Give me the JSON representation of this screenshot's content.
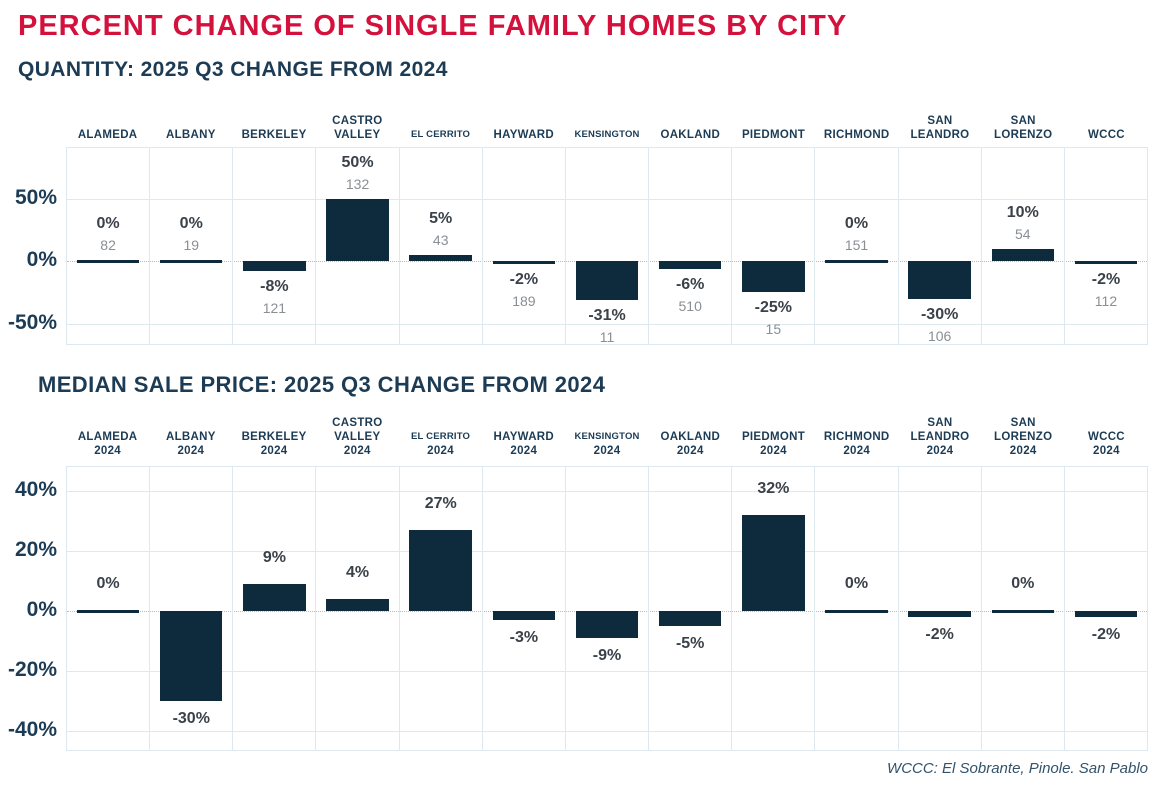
{
  "page": {
    "title": "PERCENT CHANGE OF SINGLE FAMILY HOMES BY CITY",
    "footnote": "WCCC: El Sobrante, Pinole. San Pablo"
  },
  "colors": {
    "accent_red": "#D4113C",
    "bar_navy": "#0E2A3D",
    "text_navy": "#1C3B54",
    "gridline": "#DEE8EF",
    "value_label": "#3A4149",
    "count_label": "#8A8F94"
  },
  "chart_data": [
    {
      "type": "bar",
      "title": "QUANTITY: 2025 Q3 CHANGE FROM 2024",
      "categories": [
        "ALAMEDA",
        "ALBANY",
        "BERKELEY",
        "CASTRO VALLEY",
        "EL CERRITO",
        "HAYWARD",
        "KENSINGTON",
        "OAKLAND",
        "PIEDMONT",
        "RICHMOND",
        "SAN LEANDRO",
        "SAN LORENZO",
        "WCCC"
      ],
      "category_lines": [
        [
          "ALAMEDA"
        ],
        [
          "ALBANY"
        ],
        [
          "BERKELEY"
        ],
        [
          "CASTRO",
          "VALLEY"
        ],
        [
          "EL CERRITO"
        ],
        [
          "HAYWARD"
        ],
        [
          "KENSINGTON"
        ],
        [
          "OAKLAND"
        ],
        [
          "PIEDMONT"
        ],
        [
          "RICHMOND"
        ],
        [
          "SAN",
          "LEANDRO"
        ],
        [
          "SAN",
          "LORENZO"
        ],
        [
          "WCCC"
        ]
      ],
      "values": [
        0,
        0,
        -8,
        50,
        5,
        -2,
        -31,
        -6,
        -25,
        0,
        -30,
        10,
        -2
      ],
      "counts": [
        "82",
        "19",
        "121",
        "132",
        "43",
        "189",
        "11",
        "510",
        "15",
        "151",
        "106",
        "54",
        "112"
      ],
      "value_suffix": "%",
      "yticks": [
        50,
        0,
        -50
      ],
      "ylim": [
        -68,
        91
      ],
      "grid": true,
      "legend": "none",
      "ylabel": "",
      "xlabel": ""
    },
    {
      "type": "bar",
      "title": "MEDIAN SALE PRICE: 2025 Q3 CHANGE FROM 2024",
      "categories": [
        "ALAMEDA 2024",
        "ALBANY 2024",
        "BERKELEY 2024",
        "CASTRO VALLEY 2024",
        "EL CERRITO 2024",
        "HAYWARD 2024",
        "KENSINGTON 2024",
        "OAKLAND 2024",
        "PIEDMONT 2024",
        "RICHMOND 2024",
        "SAN LEANDRO 2024",
        "SAN LORENZO 2024",
        "WCCC 2024"
      ],
      "category_lines": [
        [
          "ALAMEDA"
        ],
        [
          "ALBANY"
        ],
        [
          "BERKELEY"
        ],
        [
          "CASTRO",
          "VALLEY"
        ],
        [
          "EL CERRITO"
        ],
        [
          "HAYWARD"
        ],
        [
          "KENSINGTON"
        ],
        [
          "OAKLAND"
        ],
        [
          "PIEDMONT"
        ],
        [
          "RICHMOND"
        ],
        [
          "SAN",
          "LEANDRO"
        ],
        [
          "SAN",
          "LORENZO"
        ],
        [
          "WCCC"
        ]
      ],
      "category_year": "2024",
      "values": [
        0,
        -30,
        9,
        4,
        27,
        -3,
        -9,
        -5,
        32,
        0,
        -2,
        0,
        -2
      ],
      "value_suffix": "%",
      "yticks": [
        40,
        20,
        0,
        -20,
        -40
      ],
      "ylim": [
        -47,
        48
      ],
      "grid": true,
      "legend": "none",
      "ylabel": "",
      "xlabel": ""
    }
  ]
}
